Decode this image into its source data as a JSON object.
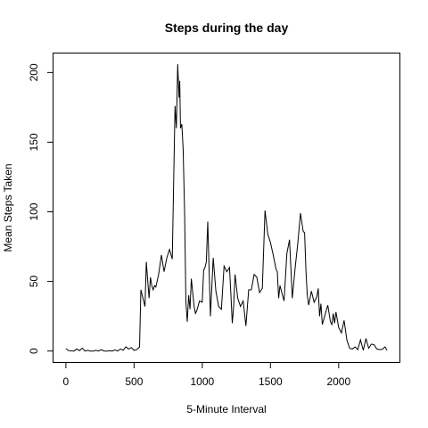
{
  "chart_data": {
    "type": "line",
    "title": "Steps during the day",
    "xlabel": "5-Minute Interval",
    "ylabel": "Mean Steps Taken",
    "xlim": [
      -94,
      2449
    ],
    "ylim": [
      -8.2,
      214
    ],
    "x_ticks": [
      0,
      500,
      1000,
      1500,
      2000
    ],
    "y_ticks": [
      0,
      50,
      100,
      150,
      200
    ],
    "grid": false,
    "legend": "none",
    "series": [
      {
        "x": [
          0,
          20,
          40,
          60,
          80,
          100,
          120,
          140,
          160,
          180,
          200,
          220,
          240,
          260,
          280,
          300,
          320,
          340,
          360,
          380,
          400,
          420,
          440,
          460,
          480,
          500,
          520,
          540,
          550,
          560,
          570,
          580,
          590,
          600,
          610,
          620,
          630,
          640,
          650,
          660,
          680,
          700,
          720,
          740,
          760,
          780,
          800,
          810,
          820,
          830,
          835,
          840,
          850,
          860,
          870,
          880,
          890,
          900,
          910,
          920,
          930,
          940,
          950,
          960,
          980,
          1000,
          1010,
          1020,
          1030,
          1040,
          1060,
          1080,
          1100,
          1120,
          1140,
          1160,
          1180,
          1200,
          1210,
          1220,
          1230,
          1240,
          1260,
          1280,
          1300,
          1320,
          1340,
          1360,
          1380,
          1400,
          1420,
          1440,
          1460,
          1480,
          1500,
          1520,
          1540,
          1550,
          1560,
          1570,
          1580,
          1600,
          1620,
          1640,
          1660,
          1680,
          1700,
          1720,
          1740,
          1750,
          1760,
          1770,
          1780,
          1800,
          1820,
          1840,
          1850,
          1860,
          1870,
          1880,
          1900,
          1920,
          1940,
          1950,
          1960,
          1970,
          1980,
          2000,
          2020,
          2040,
          2060,
          2080,
          2100,
          2120,
          2140,
          2160,
          2180,
          2200,
          2220,
          2240,
          2260,
          2280,
          2300,
          2320,
          2340,
          2355
        ],
        "y": [
          1.7,
          0.3,
          0.1,
          0.0,
          1.5,
          0.3,
          2.1,
          0.0,
          0.5,
          0.0,
          0.0,
          0.5,
          0.0,
          1.0,
          0.0,
          0.0,
          0.2,
          0.0,
          0.8,
          0.0,
          1.5,
          0.5,
          3.0,
          1.5,
          2.5,
          0.5,
          1.0,
          3.0,
          44.0,
          40.0,
          36.0,
          32.0,
          64.0,
          50.0,
          38.0,
          53.0,
          47.0,
          44.0,
          47.0,
          46.0,
          55.0,
          69.0,
          57.0,
          67.0,
          73.0,
          66.0,
          176.0,
          160.0,
          206.0,
          182.0,
          194.0,
          160.0,
          163.0,
          145.0,
          100.0,
          35.0,
          21.0,
          40.0,
          30.0,
          52.0,
          42.0,
          32.0,
          27.0,
          29.0,
          36.0,
          35.0,
          58.0,
          60.0,
          64.0,
          93.0,
          25.0,
          67.0,
          43.0,
          32.0,
          30.0,
          61.0,
          57.0,
          60.0,
          40.0,
          20.0,
          32.0,
          55.0,
          38.0,
          32.0,
          36.0,
          18.0,
          44.0,
          44.0,
          55.0,
          53.0,
          42.0,
          45.0,
          101.0,
          84.0,
          78.0,
          69.0,
          59.0,
          57.0,
          38.0,
          47.0,
          43.0,
          36.0,
          70.0,
          80.0,
          38.0,
          59.0,
          77.0,
          99.0,
          86.0,
          85.0,
          58.0,
          40.0,
          33.0,
          43.0,
          35.0,
          39.0,
          45.0,
          25.0,
          34.0,
          19.0,
          26.0,
          33.0,
          21.0,
          19.0,
          27.0,
          20.0,
          28.0,
          17.0,
          13.0,
          22.0,
          8.0,
          2.0,
          1.5,
          3.0,
          1.0,
          8.0,
          0.5,
          9.0,
          2.0,
          5.0,
          4.5,
          1.5,
          1.0,
          1.2,
          3.0,
          0.5
        ]
      }
    ]
  }
}
